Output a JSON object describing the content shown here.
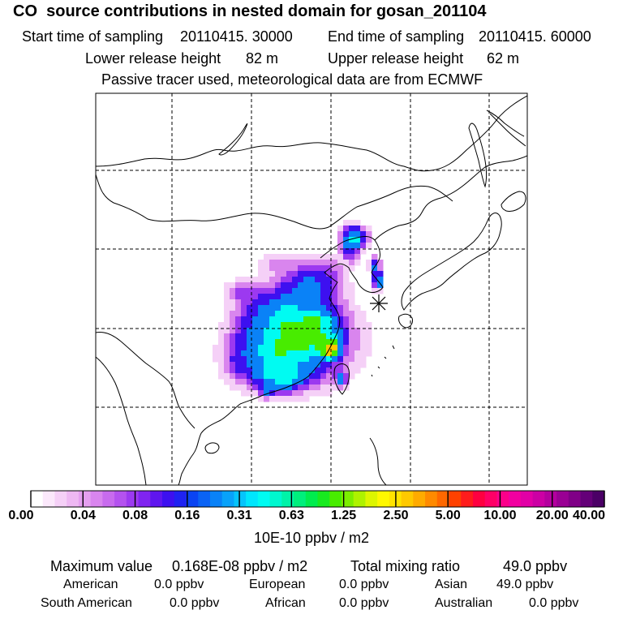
{
  "header": {
    "title": "CO  source contributions in nested domain for gosan_201104",
    "start_time_label": "Start time of sampling",
    "start_time_value": "20110415. 30000",
    "end_time_label": "End time of sampling",
    "end_time_value": "20110415. 60000",
    "lower_release_label": "Lower release height",
    "lower_release_value": "82 m",
    "upper_release_label": "Upper release height",
    "upper_release_value": "62 m",
    "tracer_note": "Passive tracer used, meteorological data are from ECMWF"
  },
  "colorbar": {
    "ticks": [
      "0.00",
      "0.04",
      "0.08",
      "0.16",
      "0.31",
      "0.63",
      "1.25",
      "2.50",
      "5.00",
      "10.00",
      "20.00",
      "40.00"
    ],
    "units": "10E-10 ppbv / m2",
    "colors": [
      "#ffffff",
      "#fbe8fb",
      "#f5d0f7",
      "#eeb8f3",
      "#e59ff0",
      "#d985ee",
      "#c86bee",
      "#b452ef",
      "#9c39f0",
      "#8024f0",
      "#5f16ef",
      "#3d10f0",
      "#1f22f2",
      "#0b44f3",
      "#0b63f5",
      "#0a82f7",
      "#09a2fa",
      "#05c4fc",
      "#00e6fd",
      "#00fbf2",
      "#00f7cf",
      "#00f3a8",
      "#00ef7c",
      "#00ec4e",
      "#18ea1f",
      "#48ec00",
      "#7cee00",
      "#aef200",
      "#ddf600",
      "#fff800",
      "#ffe400",
      "#ffc900",
      "#ffab00",
      "#ff8a00",
      "#ff6800",
      "#ff4100",
      "#ff1c1c",
      "#ff0040",
      "#ff0066",
      "#fb008a",
      "#f200a0",
      "#e200a6",
      "#cc00a4",
      "#b4009e",
      "#9a0094",
      "#800087",
      "#640078",
      "#4b0066"
    ]
  },
  "stats": {
    "maximum_label": "Maximum value",
    "maximum_value": "0.168E-08 ppbv / m2",
    "total_label": "Total mixing ratio",
    "total_value": "49.0 ppbv"
  },
  "regions": [
    {
      "name": "American",
      "value": "0.0 ppbv"
    },
    {
      "name": "European",
      "value": "0.0 ppbv"
    },
    {
      "name": "Asian",
      "value": "49.0 ppbv"
    },
    {
      "name": "South American",
      "value": "0.0 ppbv"
    },
    {
      "name": "African",
      "value": "0.0 ppbv"
    },
    {
      "name": "Australian",
      "value": "0.0 ppbv"
    }
  ],
  "map": {
    "receptor_marker": "gosan",
    "plume_levels": [
      0.02,
      0.06,
      0.12,
      0.2,
      0.4,
      0.8,
      1.6,
      3.2
    ],
    "plume_colors": [
      "#f5d0f7",
      "#d985ee",
      "#9c39f0",
      "#3d10f0",
      "#0a82f7",
      "#00fbf2",
      "#48ec00",
      "#ffc900"
    ]
  }
}
